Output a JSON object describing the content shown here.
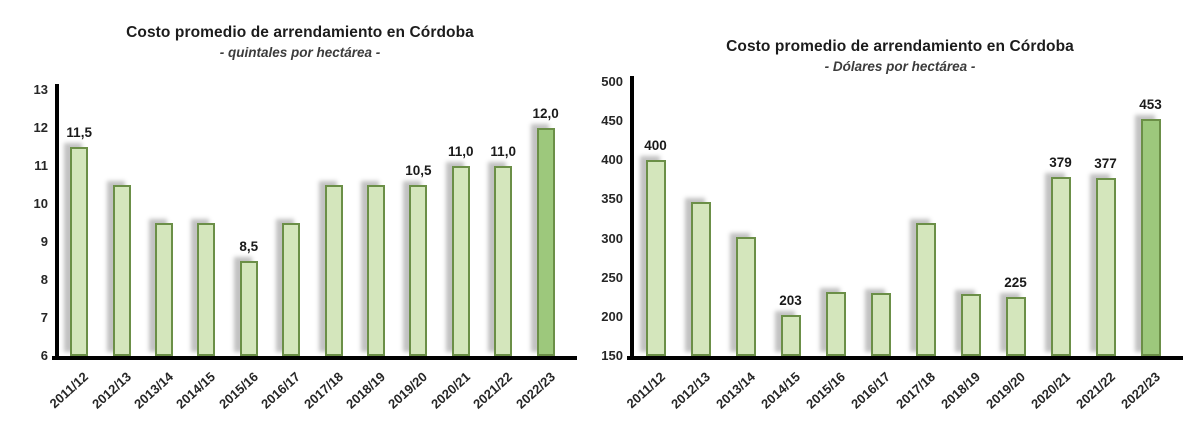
{
  "page": {
    "background": "#ffffff"
  },
  "chart_data": [
    {
      "type": "bar",
      "title": "Costo promedio de arrendamiento en Córdoba",
      "subtitle": "- quintales por hectárea -",
      "unit": "quintales por hectárea",
      "categories": [
        "2011/12",
        "2012/13",
        "2013/14",
        "2014/15",
        "2015/16",
        "2016/17",
        "2017/18",
        "2018/19",
        "2019/20",
        "2020/21",
        "2021/22",
        "2022/23"
      ],
      "values": [
        11.5,
        10.5,
        9.5,
        9.5,
        8.5,
        9.5,
        10.5,
        10.5,
        10.5,
        11.0,
        11.0,
        12.0
      ],
      "data_labels": [
        "11,5",
        null,
        null,
        null,
        "8,5",
        null,
        null,
        null,
        "10,5",
        "11,0",
        "11,0",
        "12,0"
      ],
      "ylim": [
        6,
        13
      ],
      "yticks": [
        "13",
        "12",
        "11",
        "10",
        "9",
        "8",
        "7",
        "6"
      ],
      "grid": false,
      "legend": false,
      "highlight_index": 11,
      "colors": {
        "bar_fill": "#d4e6bc",
        "bar_fill_highlight": "#9dc87c",
        "bar_border": "#6b8f47",
        "axis": "#000000",
        "text": "#1c1c1c"
      }
    },
    {
      "type": "bar",
      "title": "Costo promedio de arrendamiento en Córdoba",
      "subtitle": "- Dólares por hectárea -",
      "unit": "Dólares por hectárea",
      "categories": [
        "2011/12",
        "2012/13",
        "2013/14",
        "2014/15",
        "2015/16",
        "2016/17",
        "2017/18",
        "2018/19",
        "2019/20",
        "2020/21",
        "2021/22",
        "2022/23"
      ],
      "values": [
        400,
        347,
        302,
        203,
        232,
        230,
        320,
        229,
        225,
        379,
        377,
        453
      ],
      "data_labels": [
        "400",
        null,
        null,
        "203",
        null,
        null,
        null,
        null,
        "225",
        "379",
        "377",
        "453"
      ],
      "ylim": [
        150,
        500
      ],
      "yticks": [
        "500",
        "450",
        "400",
        "350",
        "300",
        "250",
        "200",
        "150"
      ],
      "grid": false,
      "legend": false,
      "highlight_index": 11,
      "colors": {
        "bar_fill": "#d4e6bc",
        "bar_fill_highlight": "#9dc87c",
        "bar_border": "#6b8f47",
        "axis": "#000000",
        "text": "#1c1c1c"
      }
    }
  ]
}
